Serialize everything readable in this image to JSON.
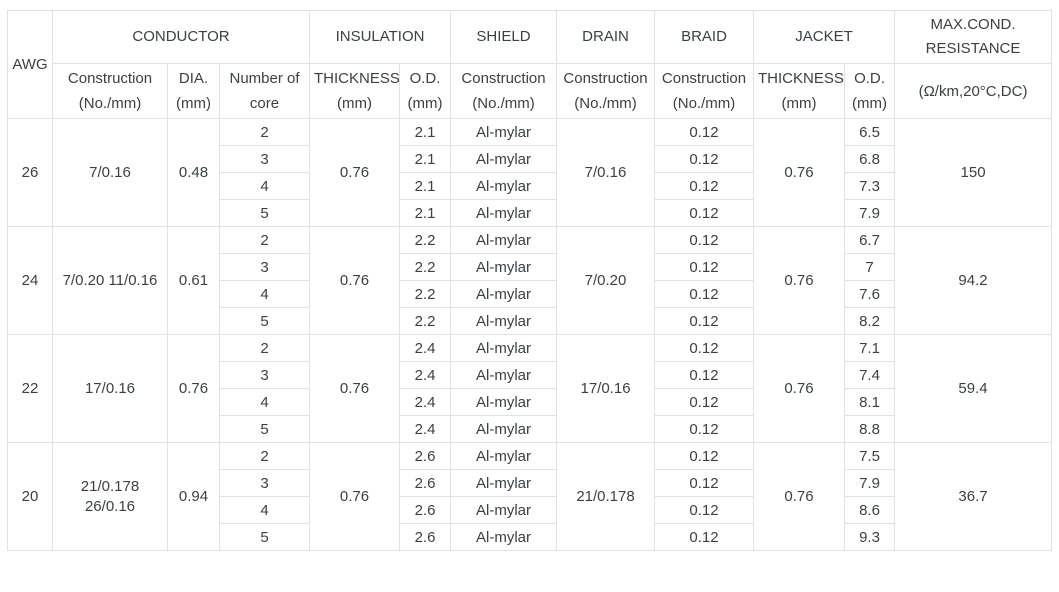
{
  "table": {
    "header": {
      "awg": "AWG",
      "conductor": "CONDUCTOR",
      "insulation": "INSULATION",
      "shield": "SHIELD",
      "drain": "DRAIN",
      "braid": "BRAID",
      "jacket": "JACKET",
      "max_resistance": "MAX.COND. RESISTANCE",
      "sub": {
        "construction": "Construction (No./mm)",
        "dia": "DIA. (mm)",
        "cores": "Number of core",
        "ins_thickness": "THICKNESS (mm)",
        "ins_od": "O.D. (mm)",
        "shield_construction": "Construction (No./mm)",
        "drain_construction": "Construction (No./mm)",
        "braid_construction": "Construction (No./mm)",
        "jacket_thickness": "THICKNESS (mm)",
        "jacket_od": "O.D. (mm)",
        "resistance_unit": "(Ω/km,20°C,DC)"
      }
    },
    "colors": {
      "text": "#3c4043",
      "border": "#e2e2e2",
      "background": "#ffffff"
    },
    "groups": [
      {
        "awg": "26",
        "construction": "7/0.16",
        "dia": "0.48",
        "ins_thickness": "0.76",
        "drain": "7/0.16",
        "jacket_thickness": "0.76",
        "resistance": "150",
        "rows": [
          {
            "cores": "2",
            "ins_od": "2.1",
            "shield": "Al-mylar",
            "braid": "0.12",
            "jacket_od": "6.5"
          },
          {
            "cores": "3",
            "ins_od": "2.1",
            "shield": "Al-mylar",
            "braid": "0.12",
            "jacket_od": "6.8"
          },
          {
            "cores": "4",
            "ins_od": "2.1",
            "shield": "Al-mylar",
            "braid": "0.12",
            "jacket_od": "7.3"
          },
          {
            "cores": "5",
            "ins_od": "2.1",
            "shield": "Al-mylar",
            "braid": "0.12",
            "jacket_od": "7.9"
          }
        ]
      },
      {
        "awg": "24",
        "construction": "7/0.20 11/0.16",
        "dia": "0.61",
        "ins_thickness": "0.76",
        "drain": "7/0.20",
        "jacket_thickness": "0.76",
        "resistance": "94.2",
        "rows": [
          {
            "cores": "2",
            "ins_od": "2.2",
            "shield": "Al-mylar",
            "braid": "0.12",
            "jacket_od": "6.7"
          },
          {
            "cores": "3",
            "ins_od": "2.2",
            "shield": "Al-mylar",
            "braid": "0.12",
            "jacket_od": "7"
          },
          {
            "cores": "4",
            "ins_od": "2.2",
            "shield": "Al-mylar",
            "braid": "0.12",
            "jacket_od": "7.6"
          },
          {
            "cores": "5",
            "ins_od": "2.2",
            "shield": "Al-mylar",
            "braid": "0.12",
            "jacket_od": "8.2"
          }
        ]
      },
      {
        "awg": "22",
        "construction": "17/0.16",
        "dia": "0.76",
        "ins_thickness": "0.76",
        "drain": "17/0.16",
        "jacket_thickness": "0.76",
        "resistance": "59.4",
        "rows": [
          {
            "cores": "2",
            "ins_od": "2.4",
            "shield": "Al-mylar",
            "braid": "0.12",
            "jacket_od": "7.1"
          },
          {
            "cores": "3",
            "ins_od": "2.4",
            "shield": "Al-mylar",
            "braid": "0.12",
            "jacket_od": "7.4"
          },
          {
            "cores": "4",
            "ins_od": "2.4",
            "shield": "Al-mylar",
            "braid": "0.12",
            "jacket_od": "8.1"
          },
          {
            "cores": "5",
            "ins_od": "2.4",
            "shield": "Al-mylar",
            "braid": "0.12",
            "jacket_od": "8.8"
          }
        ]
      },
      {
        "awg": "20",
        "construction": "21/0.178 26/0.16",
        "dia": "0.94",
        "ins_thickness": "0.76",
        "drain": "21/0.178",
        "jacket_thickness": "0.76",
        "resistance": "36.7",
        "rows": [
          {
            "cores": "2",
            "ins_od": "2.6",
            "shield": "Al-mylar",
            "braid": "0.12",
            "jacket_od": "7.5"
          },
          {
            "cores": "3",
            "ins_od": "2.6",
            "shield": "Al-mylar",
            "braid": "0.12",
            "jacket_od": "7.9"
          },
          {
            "cores": "4",
            "ins_od": "2.6",
            "shield": "Al-mylar",
            "braid": "0.12",
            "jacket_od": "8.6"
          },
          {
            "cores": "5",
            "ins_od": "2.6",
            "shield": "Al-mylar",
            "braid": "0.12",
            "jacket_od": "9.3"
          }
        ]
      }
    ]
  }
}
